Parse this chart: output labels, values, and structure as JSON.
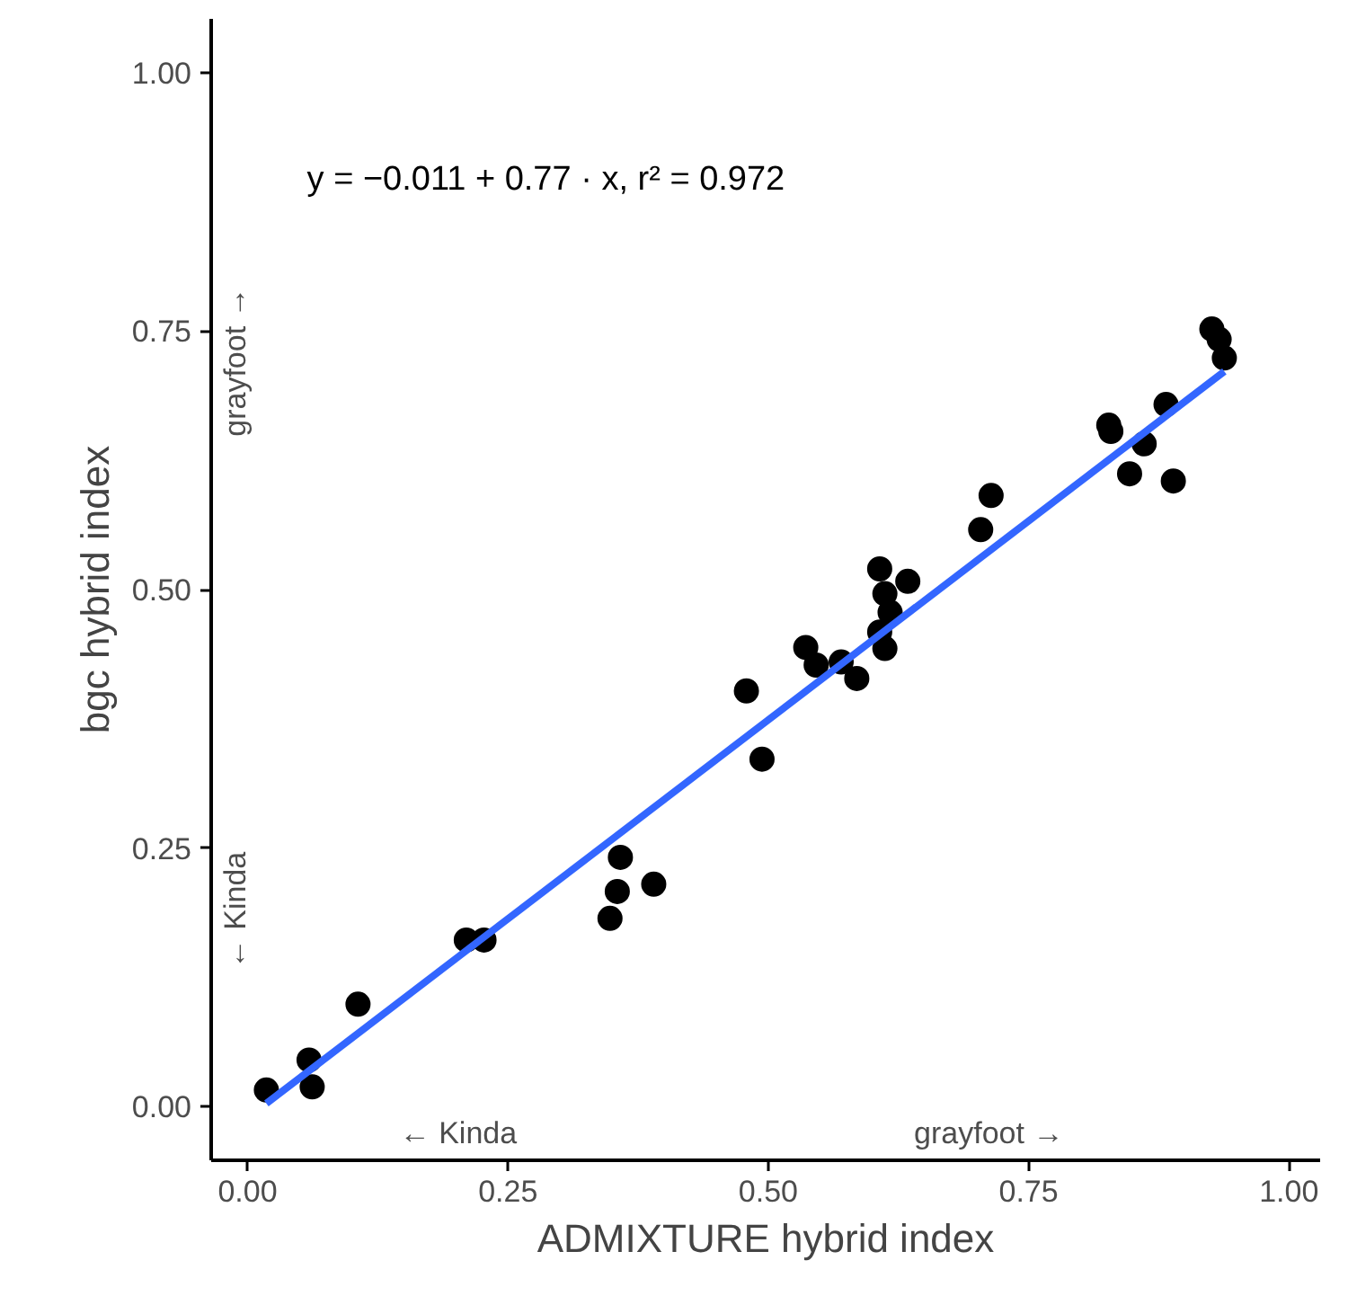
{
  "chart_data": {
    "type": "scatter",
    "xlabel": "ADMIXTURE hybrid index",
    "ylabel": "bgc hybrid index",
    "xlim": [
      -0.035,
      1.03
    ],
    "ylim": [
      -0.052,
      1.052
    ],
    "xticks": [
      {
        "value": 0,
        "label": "0.00"
      },
      {
        "value": 0.25,
        "label": "0.25"
      },
      {
        "value": 0.5,
        "label": "0.50"
      },
      {
        "value": 0.75,
        "label": "0.75"
      },
      {
        "value": 1,
        "label": "1.00"
      }
    ],
    "yticks": [
      {
        "value": 0,
        "label": "0.00"
      },
      {
        "value": 0.25,
        "label": "0.25"
      },
      {
        "value": 0.5,
        "label": "0.50"
      },
      {
        "value": 0.75,
        "label": "0.75"
      },
      {
        "value": 1,
        "label": "1.00"
      }
    ],
    "grid": false,
    "marker": "circle",
    "annotations": [
      "y = −0.011 + 0.77 · x,  r² = 0.972",
      "← Kinda",
      "grayfoot →",
      "← Kinda",
      "grayfoot →"
    ],
    "series": [
      {
        "color": "#000000",
        "x": [
          0.018,
          0.059,
          0.062,
          0.106,
          0.21,
          0.227,
          0.348,
          0.355,
          0.358,
          0.39,
          0.479,
          0.494,
          0.536,
          0.546,
          0.57,
          0.585,
          0.607,
          0.612,
          0.634,
          0.617,
          0.607,
          0.612,
          0.704,
          0.714,
          0.827,
          0.829,
          0.882,
          0.861,
          0.847,
          0.889,
          0.926,
          0.933,
          0.938
        ],
        "values": [
          0.016,
          0.045,
          0.019,
          0.099,
          0.161,
          0.161,
          0.182,
          0.208,
          0.241,
          0.215,
          0.402,
          0.336,
          0.444,
          0.427,
          0.43,
          0.414,
          0.52,
          0.496,
          0.508,
          0.478,
          0.459,
          0.443,
          0.558,
          0.591,
          0.659,
          0.653,
          0.679,
          0.641,
          0.612,
          0.605,
          0.752,
          0.742,
          0.724
        ]
      },
      {
        "type": "line",
        "marker": "none",
        "color": "#3366ff",
        "x": [
          0.018,
          0.938
        ],
        "values": [
          0.003,
          0.711
        ]
      }
    ]
  }
}
